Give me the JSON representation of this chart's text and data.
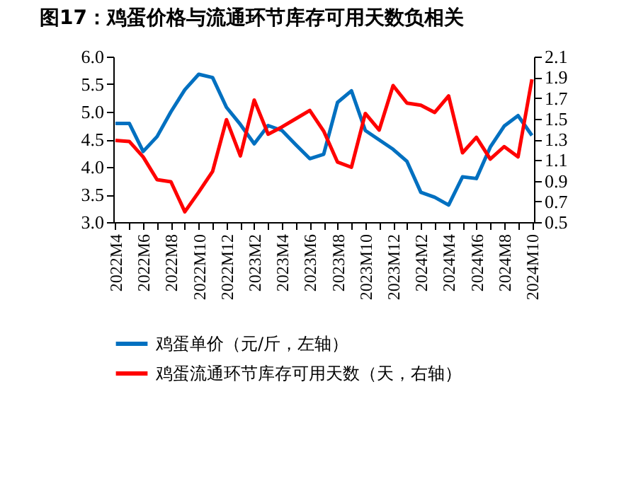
{
  "chart_data": {
    "type": "line",
    "title": "图17：鸡蛋价格与流通环节库存可用天数负相关",
    "categories": [
      "2022M4",
      null,
      "2022M6",
      null,
      "2022M8",
      null,
      "2022M10",
      null,
      "2022M12",
      null,
      "2023M2",
      null,
      "2023M4",
      null,
      "2023M6",
      null,
      "2023M8",
      null,
      "2023M10",
      null,
      "2023M12",
      null,
      "2024M2",
      null,
      "2024M4",
      null,
      "2024M6",
      null,
      "2024M8",
      null,
      "2024M10"
    ],
    "series": [
      {
        "name": "鸡蛋单价（元/斤，左轴）",
        "color": "#0070c0",
        "values": [
          4.79,
          4.79,
          4.28,
          4.55,
          5.0,
          5.4,
          5.68,
          5.62,
          5.08,
          4.77,
          4.42,
          4.75,
          4.66,
          4.4,
          4.15,
          4.23,
          5.17,
          5.38,
          4.66,
          4.49,
          4.32,
          4.1,
          3.54,
          3.45,
          3.31,
          3.82,
          3.79,
          4.36,
          4.74,
          4.93,
          4.57
        ]
      },
      {
        "name": "鸡蛋流通环节库存可用天数（天，右轴）",
        "color": "#ff0000",
        "axis": "y2",
        "values": [
          1.29,
          1.28,
          1.13,
          0.91,
          0.89,
          0.6,
          0.79,
          0.99,
          1.49,
          1.14,
          1.68,
          1.35,
          1.42,
          1.5,
          1.58,
          1.38,
          1.08,
          1.03,
          1.55,
          1.39,
          1.82,
          1.65,
          1.63,
          1.56,
          1.72,
          1.17,
          1.32,
          1.11,
          1.23,
          1.13,
          1.88
        ]
      }
    ],
    "ylim": [
      3,
      6
    ],
    "yticks": [
      {
        "value": 3,
        "label": "3.0"
      },
      3.5,
      {
        "value": 4,
        "label": "4.0"
      },
      4.5,
      {
        "value": 5,
        "label": "5.0"
      },
      5.5,
      {
        "value": 6,
        "label": "6.0"
      }
    ],
    "y2lim": [
      0.5,
      2.1
    ],
    "y2ticks": [
      0.5,
      0.7,
      0.9,
      1.1,
      1.3,
      1.5,
      1.7,
      1.9,
      2.1
    ],
    "legend": "bottom"
  }
}
